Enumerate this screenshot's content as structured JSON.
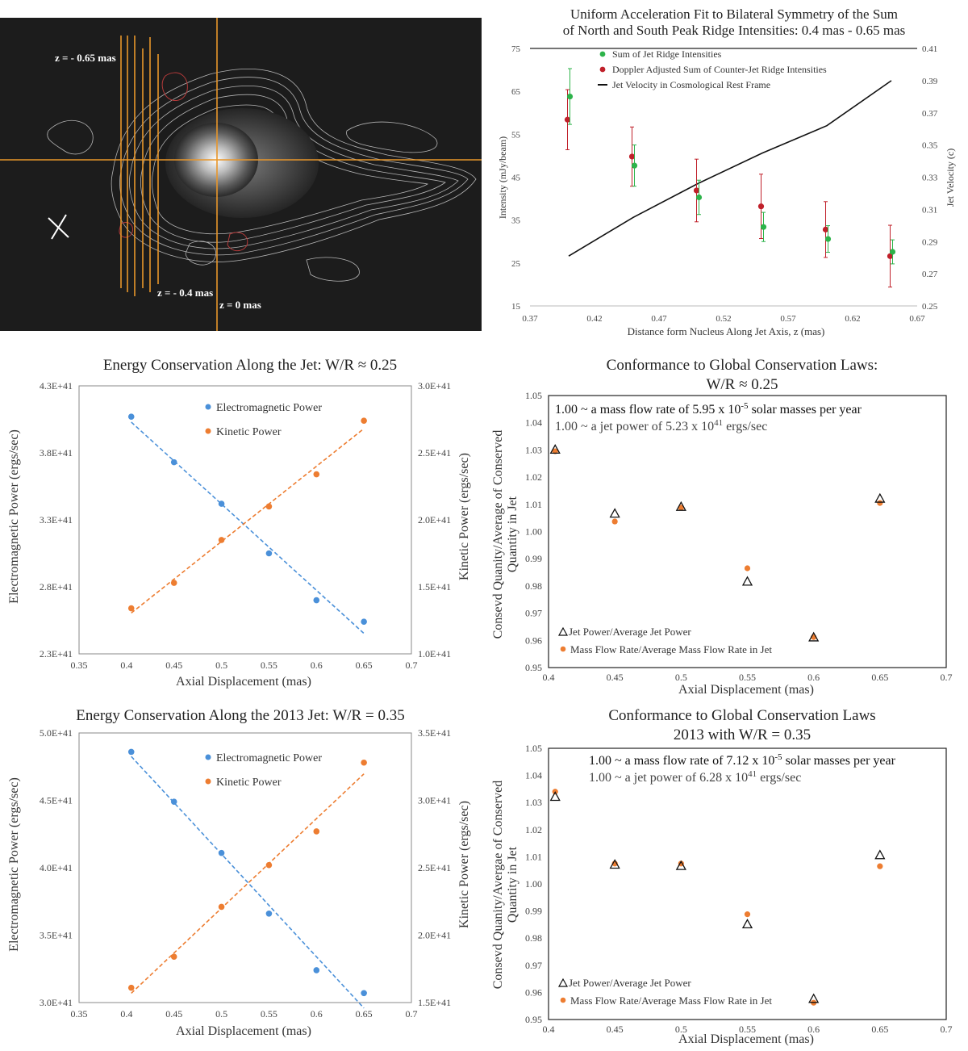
{
  "image": {
    "labels": [
      "z = - 0.65 mas",
      "z = - 0.4 mas",
      "z = 0 mas"
    ]
  },
  "chart_data": [
    {
      "type": "scatter",
      "title": "Uniform Acceleration Fit to Bilateral Symmetry of the Sum of North and South Peak Ridge Intensities: 0.4 mas - 0.65 mas",
      "title_lines": [
        "Uniform Acceleration Fit to Bilateral Symmetry of the Sum",
        "of North and South Peak Ridge Intensities: 0.4 mas - 0.65 mas"
      ],
      "xlabel": "Distance form Nucleus Along Jet Axis, z (mas)",
      "ylabel": "Intensity (mJy/beam)",
      "y2label": "Jet Velocity (c)",
      "xlim": [
        0.37,
        0.67
      ],
      "ylim": [
        15,
        75
      ],
      "y2lim": [
        0.25,
        0.41
      ],
      "xticks": [
        "0.37",
        "0.42",
        "0.47",
        "0.52",
        "0.57",
        "0.62",
        "0.67"
      ],
      "yticks": [
        "15",
        "25",
        "35",
        "45",
        "55",
        "65",
        "75"
      ],
      "y2ticks": [
        "0.25",
        "0.27",
        "0.29",
        "0.31",
        "0.33",
        "0.35",
        "0.37",
        "0.39",
        "0.41"
      ],
      "legend_position": "top-left",
      "series": [
        {
          "name": "Sum of Jet Ridge Intensities",
          "color": "#2db34a",
          "x": [
            0.4,
            0.45,
            0.5,
            0.55,
            0.6,
            0.65
          ],
          "y": [
            63.8,
            47.7,
            40.3,
            33.4,
            30.6,
            27.6
          ],
          "err": [
            6.5,
            4.8,
            4.0,
            3.4,
            3.1,
            2.8
          ]
        },
        {
          "name": "Doppler Adjusted Sum of Counter-Jet Ridge Intensities",
          "color": "#c0202a",
          "x": [
            0.4,
            0.45,
            0.5,
            0.55,
            0.6,
            0.65
          ],
          "y": [
            58.4,
            49.8,
            41.9,
            38.2,
            32.8,
            26.6
          ],
          "err": [
            7.0,
            6.9,
            7.3,
            7.5,
            6.5,
            7.2
          ]
        },
        {
          "name": "Jet Velocity in Cosmological Rest Frame",
          "color": "#111111",
          "x": [
            0.4,
            0.45,
            0.5,
            0.55,
            0.6,
            0.65
          ],
          "y2": [
            0.281,
            0.305,
            0.326,
            0.345,
            0.362,
            0.39
          ]
        }
      ]
    },
    {
      "type": "scatter",
      "title": "Energy Conservation Along the Jet: W/R ≈ 0.25",
      "xlabel": "Axial Displacement (mas)",
      "ylabel": "Electromagnetic Power (ergs/sec)",
      "y2label": "Kinetic Power (ergs/sec)",
      "xlim": [
        0.35,
        0.7
      ],
      "ylim": [
        2.3e+41,
        4.3e+41
      ],
      "y2lim": [
        1e+41,
        3e+41
      ],
      "xticks": [
        "0.35",
        "0.4",
        "0.45",
        "0.5",
        "0.55",
        "0.6",
        "0.65",
        "0.7"
      ],
      "yticks": [
        "2.3E+41",
        "2.8E+41",
        "3.3E+41",
        "3.8E+41",
        "4.3E+41"
      ],
      "y2ticks": [
        "1.0E+41",
        "1.5E+41",
        "2.0E+41",
        "2.5E+41",
        "3.0E+41"
      ],
      "legend_position": "top-center",
      "trendlines": "linear, dashed",
      "series": [
        {
          "name": "Electromagnetic Power",
          "color": "#4a90d9",
          "axis": "left",
          "x": [
            0.405,
            0.45,
            0.5,
            0.55,
            0.6,
            0.65
          ],
          "y": [
            4.07e+41,
            3.73e+41,
            3.42e+41,
            3.05e+41,
            2.7e+41,
            2.54e+41
          ]
        },
        {
          "name": "Kinetic Power",
          "color": "#ed7d31",
          "axis": "right",
          "x": [
            0.405,
            0.45,
            0.5,
            0.55,
            0.6,
            0.65
          ],
          "y": [
            1.34e+41,
            1.53e+41,
            1.85e+41,
            2.1e+41,
            2.34e+41,
            2.74e+41
          ]
        }
      ]
    },
    {
      "type": "scatter",
      "title": "Conformance to Global Conservation Laws: W/R ≈ 0.25",
      "title_lines": [
        "Conformance to Global Conservation Laws:",
        "W/R ≈ 0.25"
      ],
      "xlabel": "Axial Displacement (mas)",
      "ylabel": "Consevd Quanity/Average of Conserved Quantity in Jet",
      "ylabel_lines": [
        "Consevd Quanity/Average of Conserved",
        "Quantity in Jet"
      ],
      "xlim": [
        0.4,
        0.7
      ],
      "ylim": [
        0.95,
        1.05
      ],
      "xticks": [
        "0.4",
        "0.45",
        "0.5",
        "0.55",
        "0.6",
        "0.65",
        "0.7"
      ],
      "yticks": [
        "0.95",
        "0.96",
        "0.97",
        "0.98",
        "0.99",
        "1.00",
        "1.01",
        "1.02",
        "1.03",
        "1.04",
        "1.05"
      ],
      "annotation_prefix": "1.00 ~ ",
      "annotation1": "a mass flow rate of 5.95 x 10",
      "annotation1_exp": "-5",
      "annotation1_tail": " solar masses per year",
      "annotation2": "a jet power of 5.23 x 10",
      "annotation2_exp": "41",
      "annotation2_tail": " ergs/sec",
      "legend_position": "bottom-left",
      "series": [
        {
          "name": "Jet Power/Average Jet Power",
          "marker": "open-triangle",
          "color": "#111111",
          "x": [
            0.405,
            0.45,
            0.5,
            0.55,
            0.6,
            0.65
          ],
          "y": [
            1.03,
            1.0065,
            1.009,
            0.9815,
            0.961,
            1.012
          ]
        },
        {
          "name": "Mass Flow Rate/Average Mass Flow Rate in Jet",
          "marker": "circle",
          "color": "#ed7d31",
          "x": [
            0.405,
            0.45,
            0.5,
            0.55,
            0.6,
            0.65
          ],
          "y": [
            1.0295,
            1.0037,
            1.0088,
            0.9865,
            0.9612,
            1.0105
          ]
        }
      ]
    },
    {
      "type": "scatter",
      "title": "Energy Conservation Along the 2013 Jet: W/R = 0.35",
      "xlabel": "Axial Displacement (mas)",
      "ylabel": "Electromagnetic Power (ergs/sec)",
      "y2label": "Kinetic Power (ergs/sec)",
      "xlim": [
        0.35,
        0.7
      ],
      "ylim": [
        3e+41,
        5e+41
      ],
      "y2lim": [
        1.5e+41,
        3.5e+41
      ],
      "xticks": [
        "0.35",
        "0.4",
        "0.45",
        "0.5",
        "0.55",
        "0.6",
        "0.65",
        "0.7"
      ],
      "yticks": [
        "3.0E+41",
        "3.5E+41",
        "4.0E+41",
        "4.5E+41",
        "5.0E+41"
      ],
      "y2ticks": [
        "1.5E+41",
        "2.0E+41",
        "2.5E+41",
        "3.0E+41",
        "3.5E+41"
      ],
      "legend_position": "top-center",
      "trendlines": "linear, dashed",
      "series": [
        {
          "name": "Electromagnetic Power",
          "color": "#4a90d9",
          "axis": "left",
          "x": [
            0.405,
            0.45,
            0.5,
            0.55,
            0.6,
            0.65
          ],
          "y": [
            4.86e+41,
            4.49e+41,
            4.11e+41,
            3.66e+41,
            3.24e+41,
            3.07e+41
          ]
        },
        {
          "name": "Kinetic Power",
          "color": "#ed7d31",
          "axis": "right",
          "x": [
            0.405,
            0.45,
            0.5,
            0.55,
            0.6,
            0.65
          ],
          "y": [
            1.61e+41,
            1.84e+41,
            2.21e+41,
            2.52e+41,
            2.77e+41,
            3.28e+41
          ]
        }
      ]
    },
    {
      "type": "scatter",
      "title": "Conformance to Global Conservation Laws 2013 with W/R = 0.35",
      "title_lines": [
        "Conformance to Global Conservation Laws",
        "2013 with W/R = 0.35"
      ],
      "xlabel": "Axial Displacement (mas)",
      "ylabel": "Consevd Quanity/Avergae of Conserved Quantity in Jet",
      "ylabel_lines": [
        "Consevd Quanity/Avergae of Conserved",
        "Quantity in Jet"
      ],
      "xlim": [
        0.4,
        0.7
      ],
      "ylim": [
        0.95,
        1.05
      ],
      "xticks": [
        "0.4",
        "0.45",
        "0.5",
        "0.55",
        "0.6",
        "0.65",
        "0.7"
      ],
      "yticks": [
        "0.95",
        "0.96",
        "0.97",
        "0.98",
        "0.99",
        "1.00",
        "1.01",
        "1.02",
        "1.03",
        "1.04",
        "1.05"
      ],
      "annotation_prefix": "1.00 ~ ",
      "annotation1": "a mass flow rate of 7.12 x 10",
      "annotation1_exp": "-5",
      "annotation1_tail": " solar masses per year",
      "annotation2": "a jet power of 6.28 x 10",
      "annotation2_exp": "41",
      "annotation2_tail": " ergs/sec",
      "legend_position": "bottom-left",
      "series": [
        {
          "name": "Jet Power/Average Jet Power",
          "marker": "open-triangle",
          "color": "#111111",
          "x": [
            0.405,
            0.45,
            0.5,
            0.55,
            0.6,
            0.65
          ],
          "y": [
            1.032,
            1.007,
            1.0065,
            0.985,
            0.9575,
            1.0105
          ]
        },
        {
          "name": "Mass Flow Rate/Average Mass Flow Rate in Jet",
          "marker": "circle",
          "color": "#ed7d31",
          "x": [
            0.405,
            0.45,
            0.5,
            0.55,
            0.6,
            0.65
          ],
          "y": [
            1.034,
            1.0075,
            1.0075,
            0.9888,
            0.9562,
            1.0065
          ]
        }
      ]
    }
  ]
}
